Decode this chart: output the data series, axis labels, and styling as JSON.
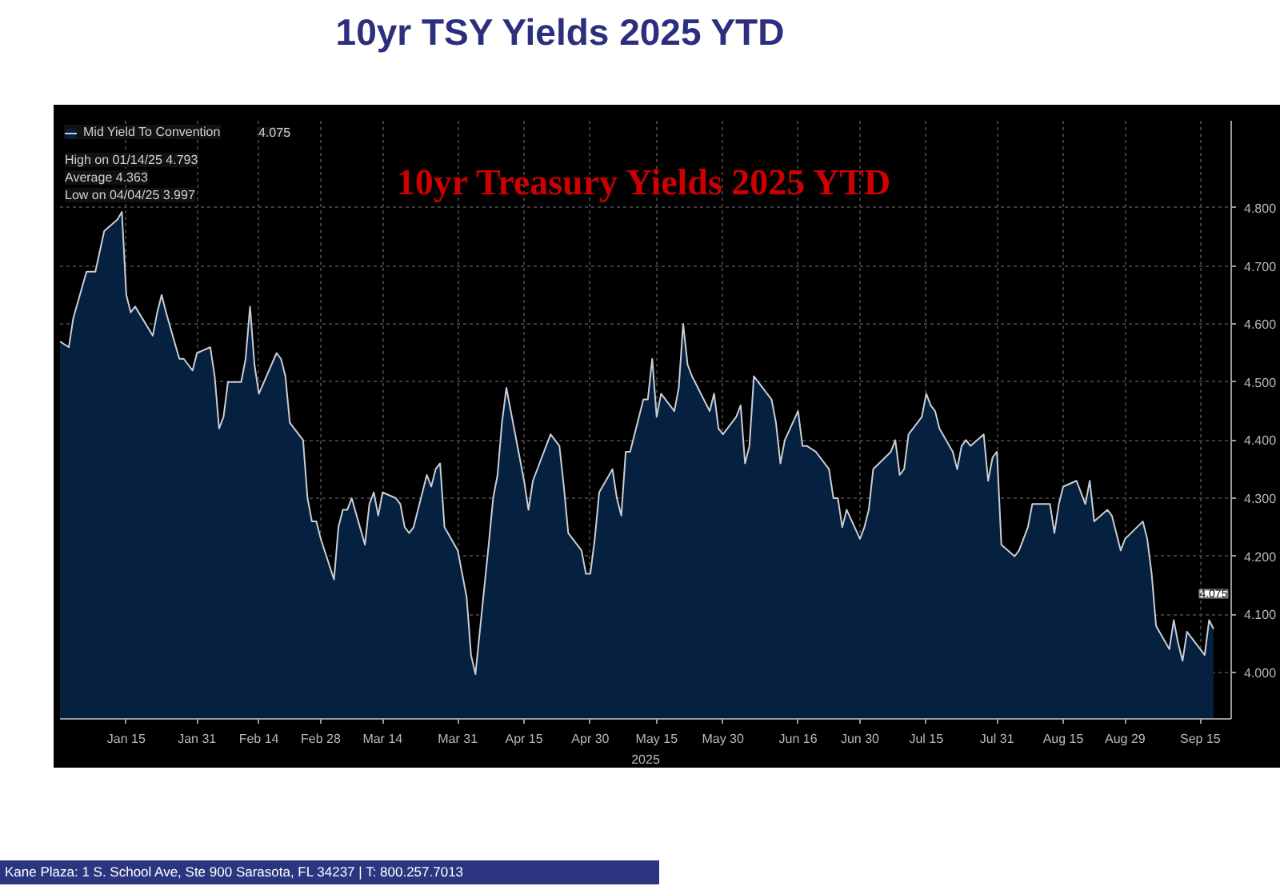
{
  "chart_data": {
    "type": "area",
    "title": "10yr TSY Yields 2025 YTD",
    "subtitle": "10yr Treasury Yields 2025 YTD",
    "xlabel": "2025",
    "annotations": [
      "4.075",
      "High on 01/14/25 4.793",
      "Average 4.363",
      "Low on 04/04/25 3.997",
      "Kane Plaza: 1 S. School Ave, Ste 900 Sarasota, FL 34237 | T: 800.257.7013"
    ],
    "x": [
      "2024-12-31",
      "2025-01-02",
      "2025-01-03",
      "2025-01-06",
      "2025-01-07",
      "2025-01-08",
      "2025-01-10",
      "2025-01-13",
      "2025-01-14",
      "2025-01-15",
      "2025-01-16",
      "2025-01-17",
      "2025-01-21",
      "2025-01-22",
      "2025-01-23",
      "2025-01-24",
      "2025-01-27",
      "2025-01-28",
      "2025-01-29",
      "2025-01-30",
      "2025-01-31",
      "2025-02-03",
      "2025-02-04",
      "2025-02-05",
      "2025-02-06",
      "2025-02-07",
      "2025-02-10",
      "2025-02-11",
      "2025-02-12",
      "2025-02-13",
      "2025-02-14",
      "2025-02-18",
      "2025-02-19",
      "2025-02-20",
      "2025-02-21",
      "2025-02-24",
      "2025-02-25",
      "2025-02-26",
      "2025-02-27",
      "2025-02-28",
      "2025-03-03",
      "2025-03-04",
      "2025-03-05",
      "2025-03-06",
      "2025-03-07",
      "2025-03-10",
      "2025-03-11",
      "2025-03-12",
      "2025-03-13",
      "2025-03-14",
      "2025-03-17",
      "2025-03-18",
      "2025-03-19",
      "2025-03-20",
      "2025-03-21",
      "2025-03-24",
      "2025-03-25",
      "2025-03-26",
      "2025-03-27",
      "2025-03-28",
      "2025-03-31",
      "2025-04-01",
      "2025-04-02",
      "2025-04-03",
      "2025-04-04",
      "2025-04-07",
      "2025-04-08",
      "2025-04-09",
      "2025-04-10",
      "2025-04-11",
      "2025-04-14",
      "2025-04-15",
      "2025-04-16",
      "2025-04-17",
      "2025-04-21",
      "2025-04-22",
      "2025-04-23",
      "2025-04-24",
      "2025-04-25",
      "2025-04-28",
      "2025-04-29",
      "2025-04-30",
      "2025-05-01",
      "2025-05-02",
      "2025-05-05",
      "2025-05-06",
      "2025-05-07",
      "2025-05-08",
      "2025-05-09",
      "2025-05-12",
      "2025-05-13",
      "2025-05-14",
      "2025-05-15",
      "2025-05-16",
      "2025-05-19",
      "2025-05-20",
      "2025-05-21",
      "2025-05-22",
      "2025-05-23",
      "2025-05-27",
      "2025-05-28",
      "2025-05-29",
      "2025-05-30",
      "2025-06-02",
      "2025-06-03",
      "2025-06-04",
      "2025-06-05",
      "2025-06-06",
      "2025-06-09",
      "2025-06-10",
      "2025-06-11",
      "2025-06-12",
      "2025-06-13",
      "2025-06-16",
      "2025-06-17",
      "2025-06-18",
      "2025-06-20",
      "2025-06-23",
      "2025-06-24",
      "2025-06-25",
      "2025-06-26",
      "2025-06-27",
      "2025-06-30",
      "2025-07-01",
      "2025-07-02",
      "2025-07-03",
      "2025-07-07",
      "2025-07-08",
      "2025-07-09",
      "2025-07-10",
      "2025-07-11",
      "2025-07-14",
      "2025-07-15",
      "2025-07-16",
      "2025-07-17",
      "2025-07-18",
      "2025-07-21",
      "2025-07-22",
      "2025-07-23",
      "2025-07-24",
      "2025-07-25",
      "2025-07-28",
      "2025-07-29",
      "2025-07-30",
      "2025-07-31",
      "2025-08-01",
      "2025-08-04",
      "2025-08-05",
      "2025-08-06",
      "2025-08-07",
      "2025-08-08",
      "2025-08-11",
      "2025-08-12",
      "2025-08-13",
      "2025-08-14",
      "2025-08-15",
      "2025-08-18",
      "2025-08-19",
      "2025-08-20",
      "2025-08-21",
      "2025-08-22",
      "2025-08-25",
      "2025-08-26",
      "2025-08-27",
      "2025-08-28",
      "2025-08-29",
      "2025-09-02",
      "2025-09-03",
      "2025-09-04",
      "2025-09-05",
      "2025-09-08",
      "2025-09-09",
      "2025-09-10",
      "2025-09-11",
      "2025-09-12",
      "2025-09-15",
      "2025-09-16",
      "2025-09-17",
      "2025-09-18"
    ],
    "series": [
      {
        "name": "Mid Yield To Convention",
        "color": "#06203f",
        "values": [
          4.57,
          4.56,
          4.61,
          4.69,
          4.69,
          4.69,
          4.76,
          4.78,
          4.793,
          4.65,
          4.62,
          4.63,
          4.58,
          4.62,
          4.65,
          4.62,
          4.54,
          4.54,
          4.53,
          4.52,
          4.55,
          4.56,
          4.51,
          4.42,
          4.44,
          4.5,
          4.5,
          4.54,
          4.63,
          4.53,
          4.48,
          4.55,
          4.54,
          4.51,
          4.43,
          4.4,
          4.3,
          4.26,
          4.26,
          4.23,
          4.16,
          4.25,
          4.28,
          4.28,
          4.3,
          4.22,
          4.29,
          4.31,
          4.27,
          4.31,
          4.3,
          4.29,
          4.25,
          4.24,
          4.25,
          4.34,
          4.32,
          4.35,
          4.36,
          4.25,
          4.21,
          4.17,
          4.13,
          4.03,
          3.997,
          4.22,
          4.3,
          4.34,
          4.43,
          4.49,
          4.37,
          4.33,
          4.28,
          4.33,
          4.41,
          4.4,
          4.39,
          4.32,
          4.24,
          4.21,
          4.17,
          4.17,
          4.23,
          4.31,
          4.35,
          4.3,
          4.27,
          4.38,
          4.38,
          4.47,
          4.47,
          4.54,
          4.44,
          4.48,
          4.45,
          4.49,
          4.6,
          4.53,
          4.51,
          4.45,
          4.48,
          4.42,
          4.41,
          4.44,
          4.46,
          4.36,
          4.39,
          4.51,
          4.48,
          4.47,
          4.43,
          4.36,
          4.4,
          4.45,
          4.39,
          4.39,
          4.38,
          4.35,
          4.3,
          4.3,
          4.25,
          4.28,
          4.23,
          4.25,
          4.28,
          4.35,
          4.38,
          4.4,
          4.34,
          4.35,
          4.41,
          4.44,
          4.48,
          4.46,
          4.45,
          4.42,
          4.38,
          4.35,
          4.39,
          4.4,
          4.39,
          4.41,
          4.33,
          4.37,
          4.38,
          4.22,
          4.2,
          4.21,
          4.23,
          4.25,
          4.29,
          4.29,
          4.29,
          4.24,
          4.29,
          4.32,
          4.33,
          4.31,
          4.29,
          4.33,
          4.26,
          4.28,
          4.27,
          4.24,
          4.21,
          4.23,
          4.26,
          4.23,
          4.17,
          4.08,
          4.04,
          4.09,
          4.05,
          4.02,
          4.07,
          4.04,
          4.03,
          4.09,
          4.075
        ],
        "value_labels": [
          null,
          null,
          null,
          null,
          null,
          null,
          null,
          null,
          null,
          null,
          null,
          null,
          null,
          null,
          null,
          null,
          null,
          null,
          null,
          null,
          null,
          null,
          null,
          null,
          null,
          null,
          null,
          null,
          null,
          null,
          null,
          null,
          null,
          null,
          null,
          null,
          null,
          null,
          null,
          null,
          null,
          null,
          null,
          null,
          null,
          null,
          null,
          null,
          null,
          null,
          null,
          null,
          null,
          null,
          null,
          null,
          null,
          null,
          null,
          null,
          null,
          null,
          null,
          null,
          null,
          null,
          null,
          null,
          null,
          null,
          null,
          null,
          null,
          null,
          null,
          null,
          null,
          null,
          null,
          null,
          null,
          null,
          null,
          null,
          null,
          null,
          null,
          null,
          null,
          null,
          null,
          null,
          null,
          null,
          null,
          null,
          null,
          null,
          null,
          null,
          null,
          null,
          null,
          null,
          null,
          null,
          null,
          null,
          null,
          null,
          null,
          null,
          null,
          null,
          null,
          null,
          null,
          null,
          null,
          null,
          null,
          null,
          null,
          null,
          null,
          null,
          null,
          null,
          null,
          null,
          null,
          null,
          null,
          null,
          null,
          null,
          null,
          null,
          null,
          null,
          null,
          null,
          null,
          null,
          null,
          null,
          null,
          null,
          null,
          null,
          null,
          null,
          null,
          null,
          null,
          null,
          null,
          null,
          null,
          null,
          null,
          null,
          null,
          null,
          null,
          null,
          null,
          null,
          null,
          null,
          null,
          null,
          null,
          null,
          null,
          null,
          null,
          null,
          "4.075"
        ]
      }
    ],
    "xlim": [
      "2024-12-31",
      "2025-09-22"
    ],
    "xticks": [
      {
        "value": "2025-01-15",
        "label": "Jan 15"
      },
      {
        "value": "2025-01-31",
        "label": "Jan 31"
      },
      {
        "value": "2025-02-14",
        "label": "Feb 14"
      },
      {
        "value": "2025-02-28",
        "label": "Feb 28"
      },
      {
        "value": "2025-03-14",
        "label": "Mar 14"
      },
      {
        "value": "2025-03-31",
        "label": "Mar 31"
      },
      {
        "value": "2025-04-15",
        "label": "Apr 15"
      },
      {
        "value": "2025-04-30",
        "label": "Apr 30"
      },
      {
        "value": "2025-05-15",
        "label": "May 15"
      },
      {
        "value": "2025-05-30",
        "label": "May 30"
      },
      {
        "value": "2025-06-16",
        "label": "Jun 16"
      },
      {
        "value": "2025-06-30",
        "label": "Jun 30"
      },
      {
        "value": "2025-07-15",
        "label": "Jul 15"
      },
      {
        "value": "2025-07-31",
        "label": "Jul 31"
      },
      {
        "value": "2025-08-15",
        "label": "Aug 15"
      },
      {
        "value": "2025-08-29",
        "label": "Aug 29"
      },
      {
        "value": "2025-09-15",
        "label": "Sep 15"
      }
    ],
    "ylim": [
      3.92,
      4.95
    ],
    "yticks": [
      {
        "value": 4.0,
        "label": "4.000"
      },
      {
        "value": 4.1,
        "label": "4.100"
      },
      {
        "value": 4.2,
        "label": "4.200"
      },
      {
        "value": 4.3,
        "label": "4.300"
      },
      {
        "value": 4.4,
        "label": "4.400"
      },
      {
        "value": 4.5,
        "label": "4.500"
      },
      {
        "value": 4.6,
        "label": "4.600"
      },
      {
        "value": 4.7,
        "label": "4.700"
      },
      {
        "value": 4.8,
        "label": "4.800"
      }
    ],
    "grid": true,
    "legend": "top left"
  }
}
